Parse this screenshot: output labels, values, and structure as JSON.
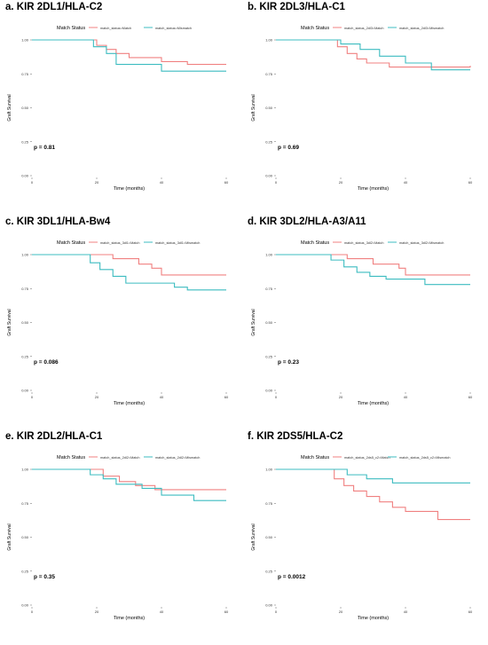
{
  "figure": {
    "ylabel": "Graft Survival",
    "xlabel": "Time (months)",
    "legend_title": "Match Status",
    "colors": {
      "match": "#f08080",
      "mismatch": "#3cbcc0"
    }
  },
  "chart_data": [
    {
      "type": "line",
      "panel_title": "a. KIR 2DL1/HLA-C2",
      "xlabel": "Time (months)",
      "ylabel": "Graft Survival",
      "x_ticks": [
        0,
        20,
        40,
        60
      ],
      "y_ticks": [
        "0.00",
        "0.25",
        "0.50",
        "0.75",
        "1.00"
      ],
      "xlim": [
        0,
        60
      ],
      "ylim": [
        0,
        1
      ],
      "legend_title": "Match Status",
      "legend_position": "top",
      "p_value": "p = 0.81",
      "series": [
        {
          "name": "match_status=Match",
          "color": "#f08080",
          "steps": [
            [
              0,
              1.0
            ],
            [
              20,
              0.96
            ],
            [
              23,
              0.93
            ],
            [
              26,
              0.9
            ],
            [
              30,
              0.87
            ],
            [
              40,
              0.84
            ],
            [
              48,
              0.82
            ],
            [
              60,
              0.82
            ]
          ]
        },
        {
          "name": "match_status=Mismatch",
          "color": "#3cbcc0",
          "steps": [
            [
              0,
              1.0
            ],
            [
              19,
              0.95
            ],
            [
              23,
              0.9
            ],
            [
              26,
              0.82
            ],
            [
              40,
              0.77
            ],
            [
              60,
              0.77
            ]
          ]
        }
      ]
    },
    {
      "type": "line",
      "panel_title": "b. KIR 2DL3/HLA-C1",
      "xlabel": "Time (months)",
      "ylabel": "Graft Survival",
      "x_ticks": [
        0,
        20,
        40,
        60
      ],
      "y_ticks": [
        "0.00",
        "0.25",
        "0.50",
        "0.75",
        "1.00"
      ],
      "xlim": [
        0,
        60
      ],
      "ylim": [
        0,
        1
      ],
      "legend_title": "Match Status",
      "legend_position": "top",
      "p_value": "p = 0.69",
      "series": [
        {
          "name": "match_status_2dl3=Match",
          "color": "#f08080",
          "steps": [
            [
              0,
              1.0
            ],
            [
              19,
              0.95
            ],
            [
              22,
              0.9
            ],
            [
              25,
              0.86
            ],
            [
              28,
              0.83
            ],
            [
              35,
              0.8
            ],
            [
              45,
              0.8
            ],
            [
              60,
              0.81
            ]
          ]
        },
        {
          "name": "match_status_2dl3=Mismatch",
          "color": "#3cbcc0",
          "steps": [
            [
              0,
              1.0
            ],
            [
              20,
              0.97
            ],
            [
              26,
              0.93
            ],
            [
              32,
              0.88
            ],
            [
              40,
              0.83
            ],
            [
              48,
              0.78
            ],
            [
              60,
              0.78
            ]
          ]
        }
      ]
    },
    {
      "type": "line",
      "panel_title": "c. KIR 3DL1/HLA-Bw4",
      "xlabel": "Time (months)",
      "ylabel": "Graft Survival",
      "x_ticks": [
        0,
        20,
        40,
        60
      ],
      "y_ticks": [
        "0.00",
        "0.25",
        "0.50",
        "0.75",
        "1.00"
      ],
      "xlim": [
        0,
        60
      ],
      "ylim": [
        0,
        1
      ],
      "legend_title": "Match Status",
      "legend_position": "top",
      "p_value": "p = 0.086",
      "series": [
        {
          "name": "match_status_3dl1=Match",
          "color": "#f08080",
          "steps": [
            [
              0,
              1.0
            ],
            [
              25,
              0.97
            ],
            [
              33,
              0.93
            ],
            [
              37,
              0.9
            ],
            [
              40,
              0.85
            ],
            [
              60,
              0.85
            ]
          ]
        },
        {
          "name": "match_status_3dl1=Mismatch",
          "color": "#3cbcc0",
          "steps": [
            [
              0,
              1.0
            ],
            [
              18,
              0.94
            ],
            [
              21,
              0.89
            ],
            [
              25,
              0.84
            ],
            [
              29,
              0.79
            ],
            [
              44,
              0.76
            ],
            [
              48,
              0.74
            ],
            [
              60,
              0.74
            ]
          ]
        }
      ]
    },
    {
      "type": "line",
      "panel_title": "d. KIR 3DL2/HLA-A3/A11",
      "xlabel": "Time (months)",
      "ylabel": "Graft Survival",
      "x_ticks": [
        0,
        20,
        40,
        60
      ],
      "y_ticks": [
        "0.00",
        "0.25",
        "0.50",
        "0.75",
        "1.00"
      ],
      "xlim": [
        0,
        60
      ],
      "ylim": [
        0,
        1
      ],
      "legend_title": "Match Status",
      "legend_position": "top",
      "p_value": "p = 0.23",
      "series": [
        {
          "name": "match_status_3dl2=Match",
          "color": "#f08080",
          "steps": [
            [
              0,
              1.0
            ],
            [
              22,
              0.97
            ],
            [
              30,
              0.93
            ],
            [
              38,
              0.9
            ],
            [
              40,
              0.85
            ],
            [
              60,
              0.85
            ]
          ]
        },
        {
          "name": "match_status_3dl2=Mismatch",
          "color": "#3cbcc0",
          "steps": [
            [
              0,
              1.0
            ],
            [
              17,
              0.96
            ],
            [
              21,
              0.91
            ],
            [
              25,
              0.87
            ],
            [
              29,
              0.84
            ],
            [
              34,
              0.82
            ],
            [
              46,
              0.78
            ],
            [
              60,
              0.78
            ]
          ]
        }
      ]
    },
    {
      "type": "line",
      "panel_title": "e. KIR 2DL2/HLA-C1",
      "xlabel": "Time (months)",
      "ylabel": "Graft Survival",
      "x_ticks": [
        0,
        20,
        40,
        60
      ],
      "y_ticks": [
        "0.00",
        "0.25",
        "0.50",
        "0.75",
        "1.00"
      ],
      "xlim": [
        0,
        60
      ],
      "ylim": [
        0,
        1
      ],
      "legend_title": "Match Status",
      "legend_position": "top",
      "p_value": "p = 0.35",
      "series": [
        {
          "name": "match_status_2dl2=Match",
          "color": "#f08080",
          "steps": [
            [
              0,
              1.0
            ],
            [
              22,
              0.95
            ],
            [
              27,
              0.91
            ],
            [
              32,
              0.88
            ],
            [
              38,
              0.85
            ],
            [
              60,
              0.85
            ]
          ]
        },
        {
          "name": "match_status_2dl2=Mismatch",
          "color": "#3cbcc0",
          "steps": [
            [
              0,
              1.0
            ],
            [
              18,
              0.96
            ],
            [
              22,
              0.93
            ],
            [
              26,
              0.89
            ],
            [
              34,
              0.86
            ],
            [
              40,
              0.81
            ],
            [
              50,
              0.77
            ],
            [
              60,
              0.77
            ]
          ]
        }
      ]
    },
    {
      "type": "line",
      "panel_title": "f. KIR 2DS5/HLA-C2",
      "xlabel": "Time (months)",
      "ylabel": "Graft Survival",
      "x_ticks": [
        0,
        20,
        40,
        60
      ],
      "y_ticks": [
        "0.00",
        "0.25",
        "0.50",
        "0.75",
        "1.00"
      ],
      "xlim": [
        0,
        60
      ],
      "ylim": [
        0,
        1
      ],
      "legend_title": "Match Status",
      "legend_position": "top",
      "p_value": "p = 0.0012",
      "series": [
        {
          "name": "match_status_2ds5_c2=Match",
          "color": "#f08080",
          "steps": [
            [
              0,
              1.0
            ],
            [
              18,
              0.93
            ],
            [
              21,
              0.88
            ],
            [
              24,
              0.84
            ],
            [
              28,
              0.8
            ],
            [
              32,
              0.76
            ],
            [
              36,
              0.72
            ],
            [
              40,
              0.69
            ],
            [
              50,
              0.63
            ],
            [
              60,
              0.63
            ]
          ]
        },
        {
          "name": "match_status_2ds5_c2=Mismatch",
          "color": "#3cbcc0",
          "steps": [
            [
              0,
              1.0
            ],
            [
              22,
              0.96
            ],
            [
              28,
              0.93
            ],
            [
              36,
              0.9
            ],
            [
              60,
              0.9
            ]
          ]
        }
      ]
    }
  ]
}
